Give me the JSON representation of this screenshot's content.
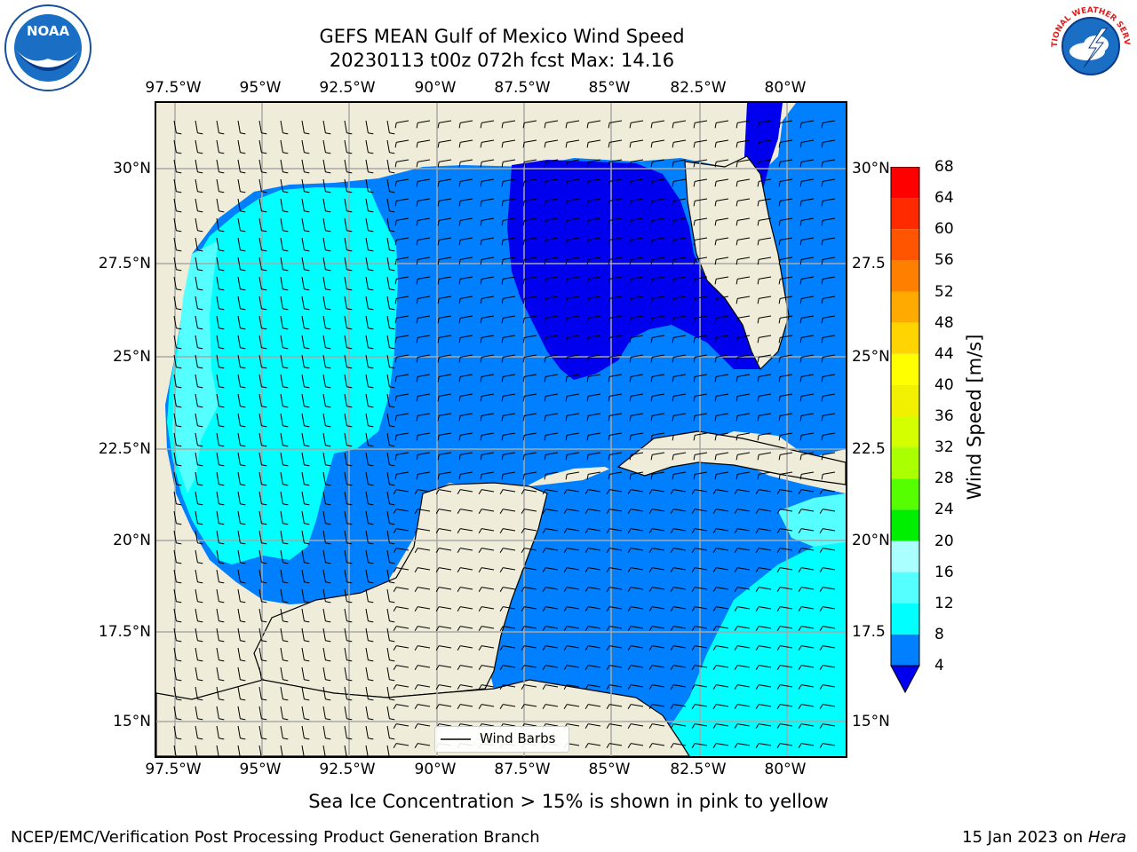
{
  "title": {
    "line1": "GEFS MEAN Gulf of Mexico Wind Speed",
    "line2": "20230113 t00z 072h fcst   Max: 14.16"
  },
  "axes": {
    "lon_ticks": [
      "97.5°W",
      "95°W",
      "92.5°W",
      "90°W",
      "87.5°W",
      "85°W",
      "82.5°W",
      "80°W"
    ],
    "lat_ticks_left": [
      "30°N",
      "27.5°N",
      "25°N",
      "22.5°N",
      "20°N",
      "17.5°N",
      "15°N"
    ],
    "lat_ticks_right": [
      "30°N",
      "27.5",
      "25°N",
      "22.5",
      "20°N",
      "17.5",
      "15°N"
    ]
  },
  "colorbar": {
    "label": "Wind Speed [m/s]",
    "ticks": [
      "68",
      "64",
      "60",
      "56",
      "52",
      "48",
      "44",
      "40",
      "36",
      "32",
      "28",
      "24",
      "20",
      "16",
      "12",
      "8",
      "4"
    ],
    "colors": [
      "#ff0000",
      "#ff2a00",
      "#ff5500",
      "#ff7f00",
      "#ffaa00",
      "#ffd400",
      "#ffff00",
      "#f0f000",
      "#d4ff00",
      "#aaff00",
      "#55ff00",
      "#00ee00",
      "#00dd00",
      "#55ff77",
      "#aaffff",
      "#55ffff",
      "#00ffff",
      "#0080ff",
      "#0000ee"
    ]
  },
  "legend": {
    "label": "Wind Barbs"
  },
  "caption": "Sea Ice Concentration > 15% is shown in pink to yellow",
  "footer": {
    "left": "NCEP/EMC/Verification Post Processing Product Generation Branch",
    "right_date": "15 Jan 2023 on ",
    "right_host": "Hera"
  },
  "logos": {
    "noaa_text": "NOAA",
    "nws_text": "NATIONAL WEATHER SERVICE"
  },
  "map_colors": {
    "land": "#efedd9",
    "ws_4_8": "#0080ff",
    "ws_lt4": "#0000ee",
    "ws_8_12": "#00ffff",
    "ws_12_16": "#55ffff"
  }
}
